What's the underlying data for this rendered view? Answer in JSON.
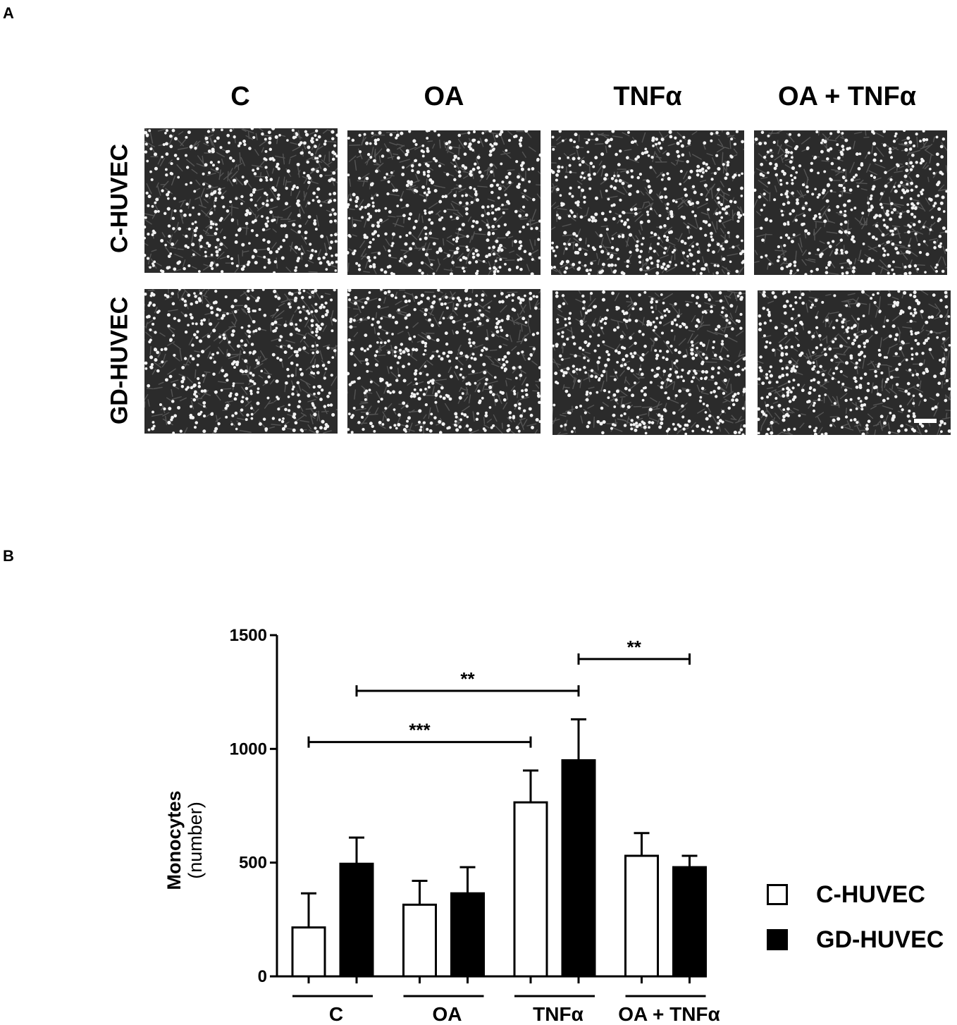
{
  "panel_a": {
    "letter": "A",
    "columns": [
      "C",
      "OA",
      "TNFα",
      "OA + TNFα"
    ],
    "rows": [
      "C-HUVEC",
      "GD-HUVEC"
    ]
  },
  "panel_b": {
    "letter": "B"
  },
  "chart_data": {
    "type": "bar",
    "categories": [
      "C",
      "OA",
      "TNFα",
      "OA + TNFα"
    ],
    "ylabel": "Monocytes\n(number)",
    "ylabel_line1": "Monocytes",
    "ylabel_line2": "(number)",
    "ylim": [
      0,
      1500
    ],
    "yticks": [
      0,
      500,
      1000,
      1500
    ],
    "series": [
      {
        "name": "C-HUVEC",
        "color": "#ffffff",
        "values": [
          215,
          315,
          765,
          530
        ],
        "errors": [
          150,
          105,
          140,
          100
        ]
      },
      {
        "name": "GD-HUVEC",
        "color": "#000000",
        "values": [
          495,
          365,
          950,
          480
        ],
        "errors": [
          115,
          115,
          180,
          50
        ]
      }
    ],
    "significance": [
      {
        "from": "C-HUVEC/C",
        "to": "C-HUVEC/TNFα",
        "label": "***",
        "y": 1030
      },
      {
        "from": "GD-HUVEC/C",
        "to": "GD-HUVEC/TNFα",
        "label": "**",
        "y": 1255
      },
      {
        "from": "GD-HUVEC/TNFα",
        "to": "GD-HUVEC/OA + TNFα",
        "label": "**",
        "y": 1395
      }
    ],
    "legend_position": "right"
  }
}
